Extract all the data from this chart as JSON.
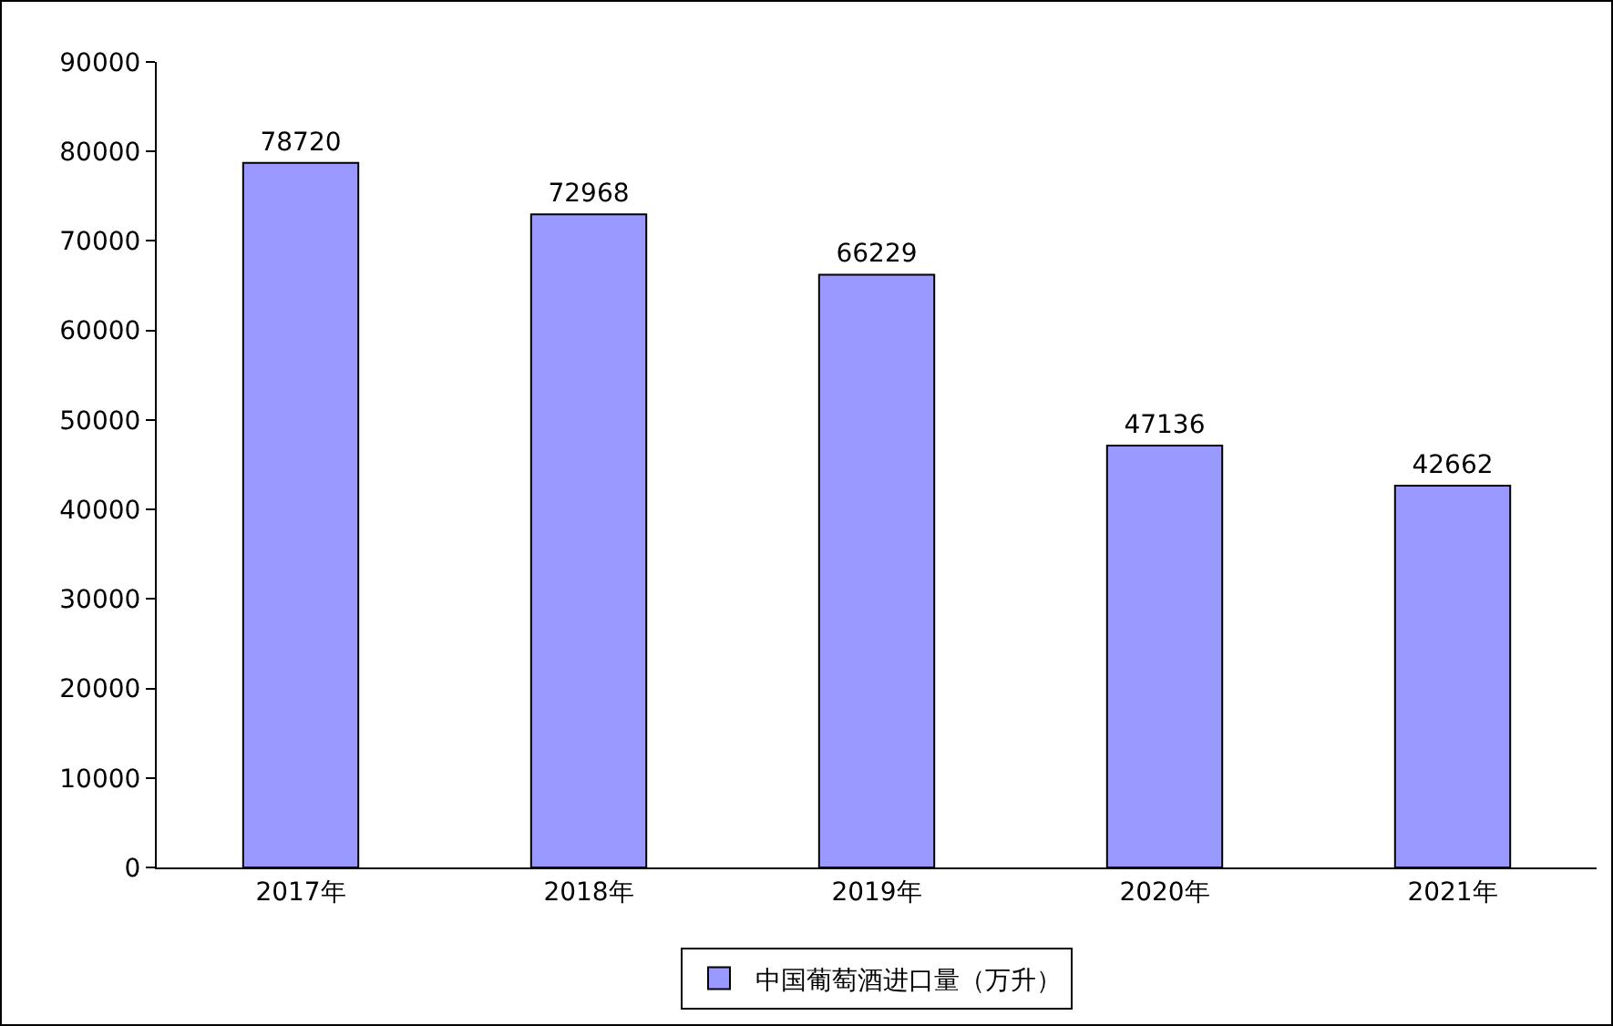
{
  "chart_data": {
    "type": "bar",
    "categories": [
      "2017年",
      "2018年",
      "2019年",
      "2020年",
      "2021年"
    ],
    "series": [
      {
        "name": "中国葡萄酒进口量（万升）",
        "color": "#9999ff",
        "values": [
          78720,
          72968,
          66229,
          47136,
          42662
        ]
      }
    ],
    "ylim": [
      0,
      90000
    ],
    "yticks": [
      0,
      10000,
      20000,
      30000,
      40000,
      50000,
      60000,
      70000,
      80000,
      90000
    ],
    "data_labels": true,
    "grid": false,
    "legend": "bottom"
  }
}
